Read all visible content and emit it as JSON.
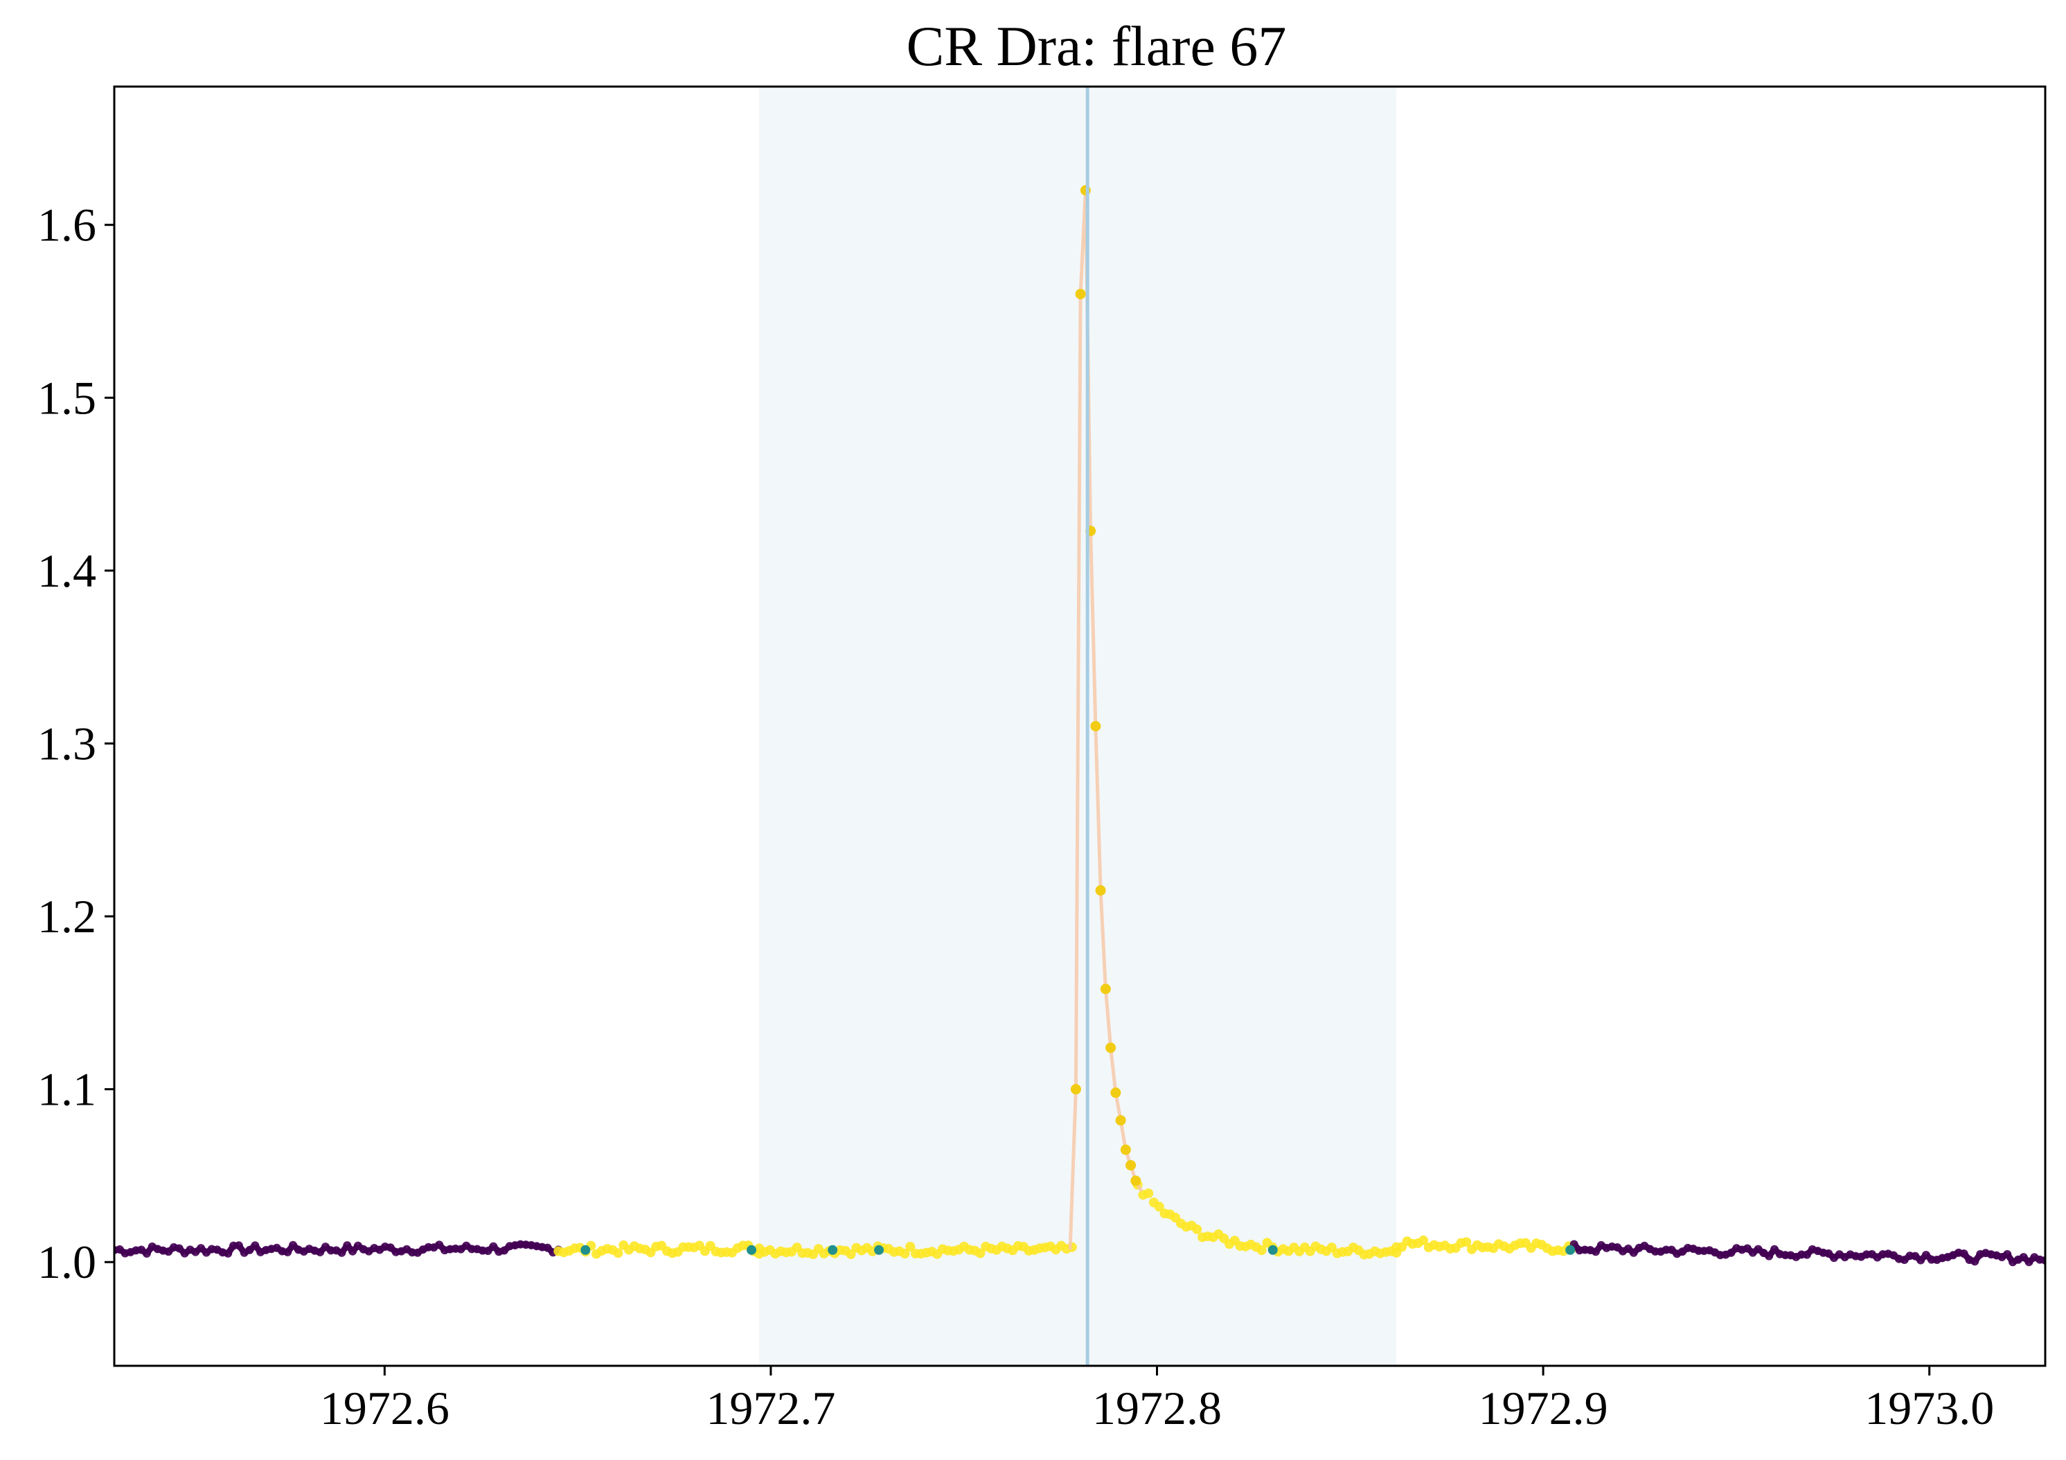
{
  "chart_data": {
    "type": "scatter",
    "title": "CR Dra: flare 67",
    "xlabel": "",
    "ylabel": "",
    "xlim": [
      1972.53,
      1973.03
    ],
    "ylim": [
      0.94,
      1.68
    ],
    "xticks": [
      1972.6,
      1972.7,
      1972.8,
      1972.9,
      1973.0
    ],
    "xtick_labels": [
      "1972.6",
      "1972.7",
      "1972.8",
      "1972.9",
      "1973.0"
    ],
    "yticks": [
      1.0,
      1.1,
      1.2,
      1.3,
      1.4,
      1.5,
      1.6
    ],
    "ytick_labels": [
      "1.0",
      "1.1",
      "1.2",
      "1.3",
      "1.4",
      "1.5",
      "1.6"
    ],
    "grid": false,
    "flare_window": [
      1972.697,
      1972.862
    ],
    "flare_peak_time": 1972.782,
    "colors": {
      "quiescent": "#440154",
      "flare_candidate": "#fde725",
      "transition": "#21908d",
      "flare_line": "#f7c9a8",
      "window": "#e6f0f5",
      "peak_line": "#a6cde3"
    },
    "flare_points": [
      [
        1972.779,
        1.1
      ],
      [
        1972.7802,
        1.56
      ],
      [
        1972.7815,
        1.62
      ],
      [
        1972.7828,
        1.423
      ],
      [
        1972.7841,
        1.31
      ],
      [
        1972.7854,
        1.215
      ],
      [
        1972.7867,
        1.158
      ],
      [
        1972.788,
        1.124
      ],
      [
        1972.7893,
        1.098
      ],
      [
        1972.7906,
        1.082
      ],
      [
        1972.7919,
        1.065
      ],
      [
        1972.7932,
        1.056
      ],
      [
        1972.7945,
        1.047
      ]
    ],
    "baseline_segments": [
      {
        "x0": 1972.53,
        "x1": 1972.645,
        "y0": 1.007,
        "y1": 1.008,
        "class": "quiescent"
      },
      {
        "x0": 1972.645,
        "x1": 1972.697,
        "y0": 1.007,
        "y1": 1.008,
        "class": "flare_candidate"
      },
      {
        "x0": 1972.697,
        "x1": 1972.778,
        "y0": 1.007,
        "y1": 1.007,
        "class": "flare_candidate"
      },
      {
        "x0": 1972.795,
        "x1": 1972.862,
        "y0": 1.045,
        "y1": 1.006,
        "class": "flare_candidate"
      },
      {
        "x0": 1972.862,
        "x1": 1972.908,
        "y0": 1.011,
        "y1": 1.008,
        "class": "flare_candidate"
      },
      {
        "x0": 1972.908,
        "x1": 1973.03,
        "y0": 1.008,
        "y1": 1.002,
        "class": "quiescent"
      }
    ]
  }
}
